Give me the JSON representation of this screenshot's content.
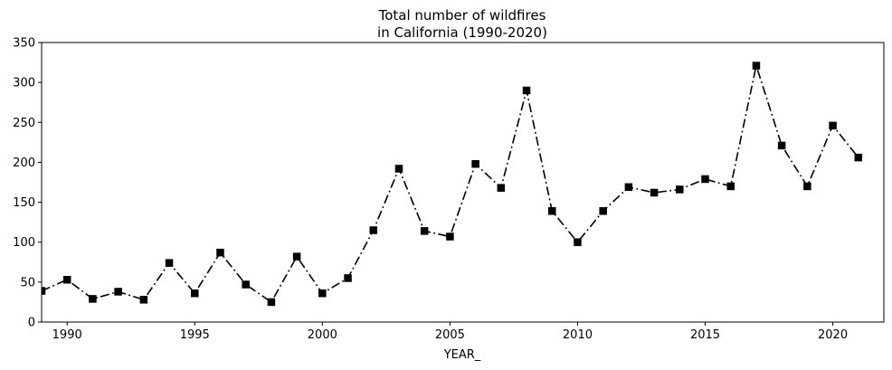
{
  "chart_data": {
    "type": "line",
    "title_lines": [
      "Total number of wildfires",
      "in California (1990-2020)"
    ],
    "xlabel": "YEAR_",
    "ylabel": "",
    "xlim": [
      1989,
      2022
    ],
    "ylim": [
      0,
      350
    ],
    "xticks": [
      1990,
      1995,
      2000,
      2005,
      2010,
      2015,
      2020
    ],
    "yticks": [
      0,
      50,
      100,
      150,
      200,
      250,
      300,
      350
    ],
    "grid": false,
    "legend": null,
    "series": [
      {
        "line_style": "dash-dot",
        "marker": "square",
        "color": "#000000",
        "x": [
          1989,
          1990,
          1991,
          1992,
          1993,
          1994,
          1995,
          1996,
          1997,
          1998,
          1999,
          2000,
          2001,
          2002,
          2003,
          2004,
          2005,
          2006,
          2007,
          2008,
          2009,
          2010,
          2011,
          2012,
          2013,
          2014,
          2015,
          2016,
          2017,
          2018,
          2019,
          2020,
          2021
        ],
        "y": [
          39,
          53,
          29,
          38,
          28,
          74,
          36,
          87,
          47,
          25,
          82,
          36,
          55,
          115,
          192,
          114,
          107,
          198,
          168,
          290,
          139,
          100,
          139,
          169,
          162,
          166,
          179,
          170,
          321,
          221,
          170,
          246,
          206
        ]
      }
    ]
  }
}
